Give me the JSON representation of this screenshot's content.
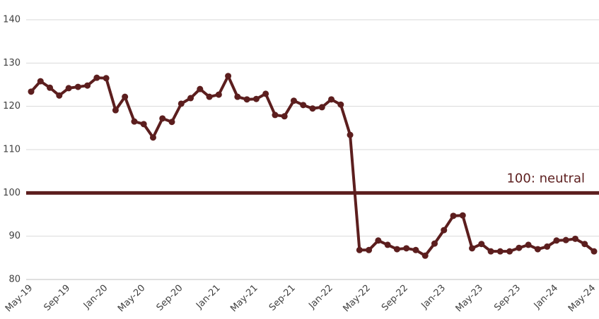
{
  "chart_data": {
    "type": "line",
    "categories": [
      "May-19",
      null,
      null,
      null,
      "Sep-19",
      null,
      null,
      null,
      "Jan-20",
      null,
      null,
      null,
      "May-20",
      null,
      null,
      null,
      "Sep-20",
      null,
      null,
      null,
      "Jan-21",
      null,
      null,
      null,
      "May-21",
      null,
      null,
      null,
      "Sep-21",
      null,
      null,
      null,
      "Jan-22",
      null,
      null,
      null,
      "May-22",
      null,
      null,
      null,
      "Sep-22",
      null,
      null,
      null,
      "Jan-23",
      null,
      null,
      null,
      "May-23",
      null,
      null,
      null,
      "Sep-23",
      null,
      null,
      null,
      "Jan-24",
      null,
      null,
      null,
      "May-24"
    ],
    "series": [
      {
        "color": "#5c1e1e",
        "values": [
          123.4,
          125.8,
          124.3,
          122.5,
          124.2,
          124.5,
          124.8,
          126.6,
          126.5,
          119.1,
          122.2,
          116.5,
          115.9,
          112.8,
          117.2,
          116.4,
          120.6,
          121.9,
          124.0,
          122.2,
          122.7,
          127.0,
          122.2,
          121.6,
          121.7,
          122.9,
          118.0,
          117.7,
          121.3,
          120.3,
          119.5,
          119.8,
          121.6,
          120.4,
          113.4,
          86.8,
          86.8,
          89.0,
          88.0,
          87.0,
          87.2,
          86.8,
          85.5,
          88.3,
          91.4,
          94.7,
          94.8,
          87.2,
          88.2,
          86.5,
          86.5,
          86.5,
          87.3,
          88.0,
          87.0,
          87.6,
          89.0,
          89.1,
          89.4,
          88.2,
          86.5
        ]
      }
    ],
    "reference_line": {
      "value": 100,
      "label": "100: neutral",
      "color": "#5c1e1e"
    },
    "ylim": [
      80,
      140
    ],
    "yticks": [
      80,
      90,
      100,
      110,
      120,
      130,
      140
    ],
    "grid": true
  }
}
